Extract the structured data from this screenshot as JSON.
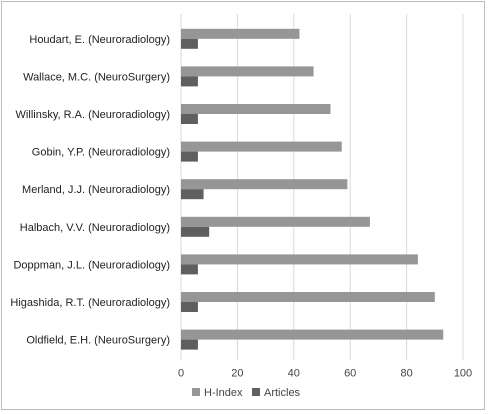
{
  "chart_data": {
    "type": "bar",
    "orientation": "horizontal",
    "categories": [
      "Houdart, E. (Neuroradiology)",
      "Wallace, M.C. (NeuroSurgery)",
      "Willinsky, R.A. (Neuroradiology)",
      "Gobin, Y.P. (Neuroradiology)",
      "Merland, J.J. (Neuroradiology)",
      "Halbach, V.V. (Neuroradiology)",
      "Doppman, J.L. (Neuroradiology)",
      "Higashida, R.T. (Neuroradiology)",
      "Oldfield, E.H. (NeuroSurgery)"
    ],
    "series": [
      {
        "name": "H-Index",
        "color": "#969696",
        "values": [
          42,
          47,
          53,
          57,
          59,
          67,
          84,
          90,
          93
        ]
      },
      {
        "name": "Articles",
        "color": "#5f5f5f",
        "values": [
          6,
          6,
          6,
          6,
          8,
          10,
          6,
          6,
          6
        ]
      }
    ],
    "xlim": [
      0,
      100
    ],
    "xticks": [
      "0",
      "20",
      "40",
      "60",
      "80",
      "100"
    ],
    "grid": true,
    "legend_position": "bottom"
  }
}
